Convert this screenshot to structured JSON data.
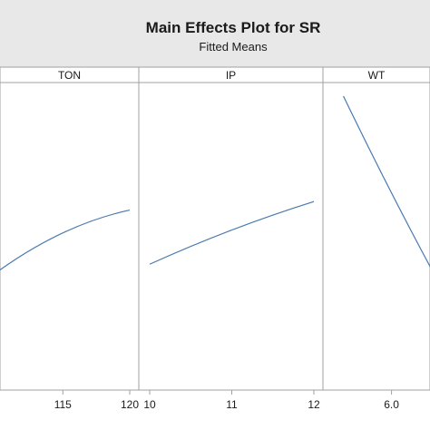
{
  "chart_data": {
    "type": "line",
    "title": "Main Effects Plot for SR",
    "subtitle": "Fitted Means",
    "colors": {
      "header_bg": "#e8e8e8",
      "line": "#4a7ab0",
      "frame": "#a0a0a0"
    },
    "ylim": [
      0,
      1
    ],
    "panels": [
      {
        "label": "TON",
        "x": [
          110,
          115,
          120
        ],
        "y": [
          0.38,
          0.52,
          0.6
        ],
        "xlim": [
          110.3,
          120
        ],
        "tick_labels": [
          "115",
          "120"
        ]
      },
      {
        "label": "IP",
        "x": [
          10,
          11,
          12
        ],
        "y": [
          0.41,
          0.53,
          0.63
        ],
        "xlim": [
          10,
          12
        ],
        "tick_labels": [
          "10",
          "11",
          "12"
        ]
      },
      {
        "label": "WT",
        "x": [
          5.5,
          6.0,
          6.5
        ],
        "y": [
          1.0,
          0.66,
          0.34
        ],
        "xlim": [
          5.4,
          6.4
        ],
        "tick_labels": [
          "6.0"
        ]
      }
    ]
  }
}
